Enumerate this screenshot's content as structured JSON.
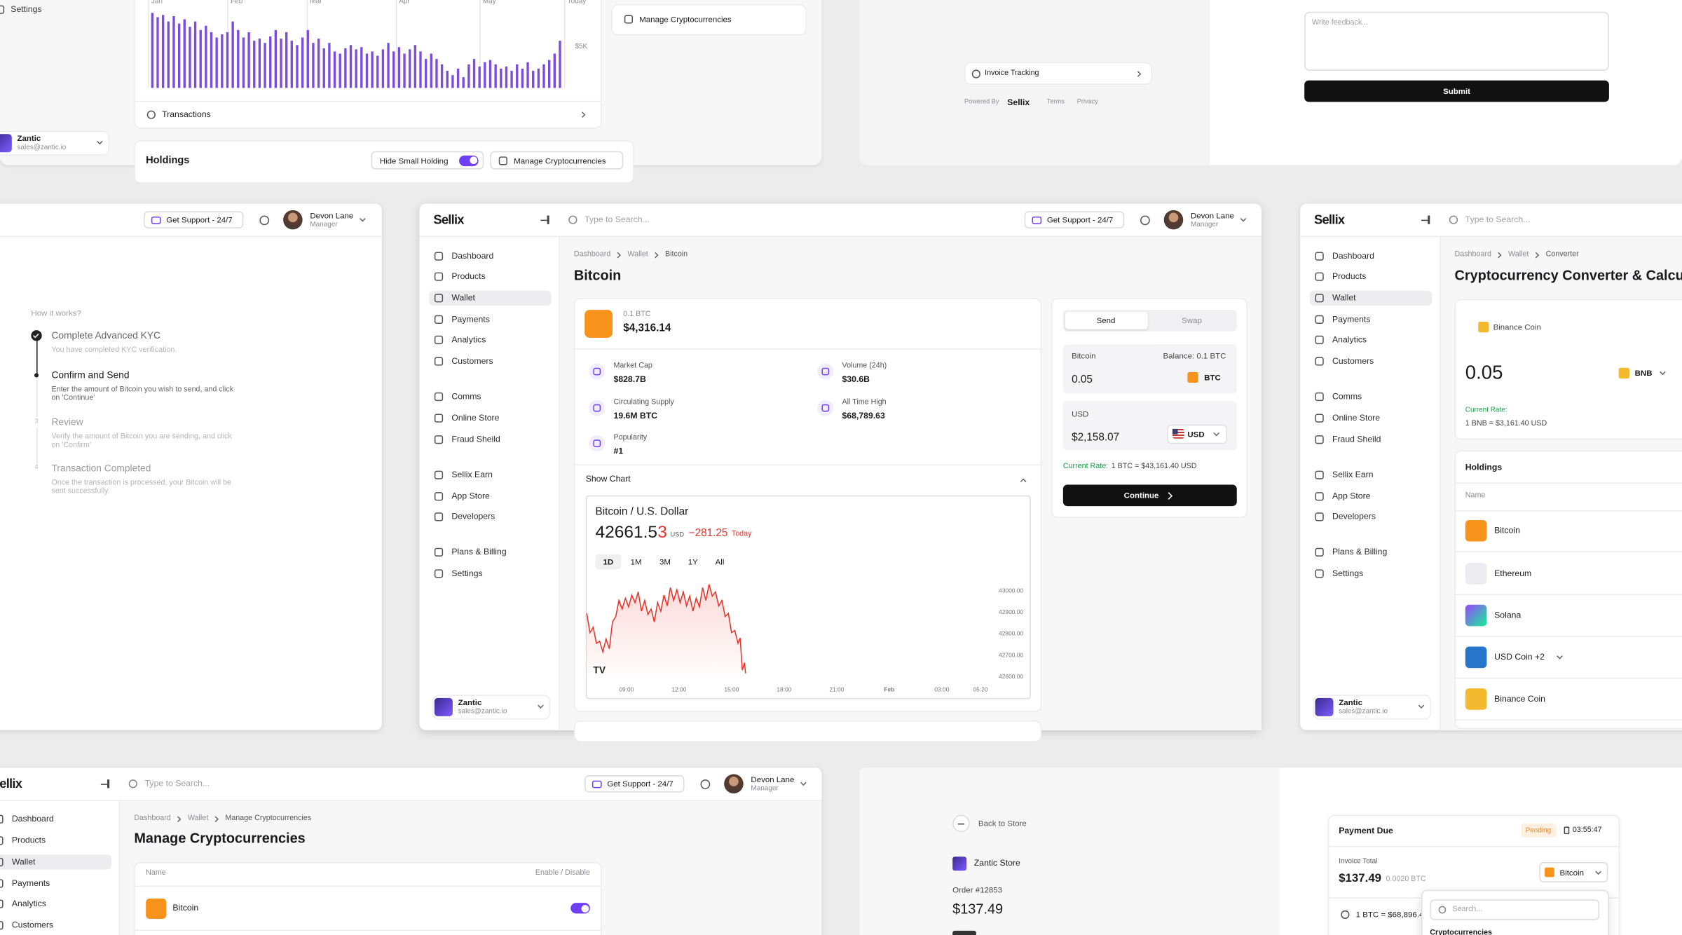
{
  "top_left": {
    "sidebar_settings": "Settings",
    "chart_months": [
      "Jan",
      "Feb",
      "Mar",
      "Apr",
      "May",
      "Today"
    ],
    "chart_axis_label": "$5K",
    "transactions": "Transactions",
    "account": {
      "name": "Zantic",
      "email": "sales@zantic.io"
    },
    "holdings_title": "Holdings",
    "hide_small_holding": "Hide Small Holding",
    "manage_button": "Manage Cryptocurrencies",
    "side_card": "Manage Cryptocurrencies"
  },
  "top_right": {
    "invoice_tracking": "Invoice Tracking",
    "powered_by": "Powered By",
    "brand": "Sellix",
    "links": [
      "Terms",
      "Privacy"
    ],
    "feedback_placeholder": "Write feedback...",
    "submit": "Submit"
  },
  "steps_panel": {
    "support": "Get Support - 24/7",
    "user": {
      "name": "Devon Lane",
      "role": "Manager"
    },
    "heading": "How it works?",
    "steps": [
      {
        "title": "Complete Advanced KYC",
        "description": "You have completed KYC verification."
      },
      {
        "title": "Confirm and Send",
        "description": "Enter the amount of Bitcoin you wish to send, and click on 'Continue'"
      },
      {
        "number": "3",
        "title": "Review",
        "description": "Verify the amount of Bitcoin you are sending, and click on 'Confirm'"
      },
      {
        "number": "4",
        "title": "Transaction Completed",
        "description": "Once the transaction is processed, your Bitcoin will be sent successfully."
      }
    ]
  },
  "bitcoin_panel": {
    "logo": "Sellix",
    "search_placeholder": "Type to Search...",
    "support": "Get Support - 24/7",
    "user": {
      "name": "Devon Lane",
      "role": "Manager"
    },
    "nav": [
      "Dashboard",
      "Products",
      "Wallet",
      "Payments",
      "Analytics",
      "Customers",
      "Comms",
      "Online Store",
      "Fraud Sheild",
      "Sellix Earn",
      "App Store",
      "Developers",
      "Plans & Billing",
      "Settings"
    ],
    "account": {
      "name": "Zantic",
      "email": "sales@zantic.io"
    },
    "breadcrumb": [
      "Dashboard",
      "Wallet",
      "Bitcoin"
    ],
    "title": "Bitcoin",
    "holding": {
      "amount": "0.1 BTC",
      "value": "$4,316.14"
    },
    "stats": [
      {
        "label": "Market Cap",
        "value": "$828.7B"
      },
      {
        "label": "Volume (24h)",
        "value": "$30.6B"
      },
      {
        "label": "Circulating Supply",
        "value": "19.6M BTC"
      },
      {
        "label": "All Time High",
        "value": "$68,789.63"
      },
      {
        "label": "Popularity",
        "value": "#1"
      }
    ],
    "show_chart": "Show Chart",
    "chart": {
      "pair": "Bitcoin / U.S. Dollar",
      "price_main": "42661.5",
      "price_last_digit": "3",
      "currency": "USD",
      "change": "−281.25",
      "period": "Today",
      "ranges": [
        "1D",
        "1M",
        "3M",
        "1Y",
        "All"
      ],
      "y_labels": [
        "43000.00",
        "42900.00",
        "42800.00",
        "42700.00",
        "42600.00"
      ],
      "x_labels": [
        "09:00",
        "12:00",
        "15:00",
        "18:00",
        "21:00",
        "Feb",
        "03:00",
        "05:20"
      ]
    },
    "exchange": {
      "tabs": [
        "Send",
        "Swap"
      ],
      "from": {
        "label": "Bitcoin",
        "balance": "Balance: 0.1 BTC",
        "amount": "0.05",
        "currency": "BTC"
      },
      "to": {
        "label": "USD",
        "amount": "$2,158.07",
        "currency": "USD"
      },
      "rate_label": "Current Rate:",
      "rate": "1 BTC = $43,161.40 USD",
      "button": "Continue"
    }
  },
  "converter_panel": {
    "logo": "Sellix",
    "search_placeholder": "Type to Search...",
    "nav": [
      "Dashboard",
      "Products",
      "Wallet",
      "Payments",
      "Analytics",
      "Customers",
      "Comms",
      "Online Store",
      "Fraud Sheild",
      "Sellix Earn",
      "App Store",
      "Developers",
      "Plans & Billing",
      "Settings"
    ],
    "account": {
      "name": "Zantic",
      "email": "sales@zantic.io"
    },
    "breadcrumb": [
      "Dashboard",
      "Wallet",
      "Converter"
    ],
    "title": "Cryptocurrency Converter & Calculator",
    "converter": {
      "coin": "Binance Coin",
      "amount": "0.05",
      "currency": "BNB",
      "rate_label": "Current Rate:",
      "rate": "1 BNB = $3,161.40 USD"
    },
    "holdings": {
      "title": "Holdings",
      "column": "Name",
      "coins": [
        "Bitcoin",
        "Ethereum",
        "Solana",
        "USD Coin +2",
        "Binance Coin"
      ]
    }
  },
  "manage_panel": {
    "logo": "Sellix",
    "search_placeholder": "Type to Search...",
    "support": "Get Support - 24/7",
    "user": {
      "name": "Devon Lane",
      "role": "Manager"
    },
    "nav": [
      "Dashboard",
      "Products",
      "Wallet",
      "Payments",
      "Analytics",
      "Customers"
    ],
    "breadcrumb": [
      "Dashboard",
      "Wallet",
      "Manage Cryptocurrencies"
    ],
    "title": "Manage Cryptocurrencies",
    "columns": [
      "Name",
      "Enable / Disable"
    ],
    "rows": [
      "Bitcoin"
    ]
  },
  "payment_panel": {
    "back": "Back to Store",
    "store": "Zantic Store",
    "order": "Order #12853",
    "total": "$137.49",
    "card": {
      "title": "Payment Due",
      "status": "Pending",
      "timer": "03:55:47",
      "total_label": "Invoice Total",
      "total": "$137.49",
      "crypto_amount": "0.0020 BTC",
      "method": "Bitcoin",
      "rate": "1 BTC = $68,896.4",
      "search_placeholder": "Search...",
      "group": "Cryptocurrencies"
    }
  }
}
